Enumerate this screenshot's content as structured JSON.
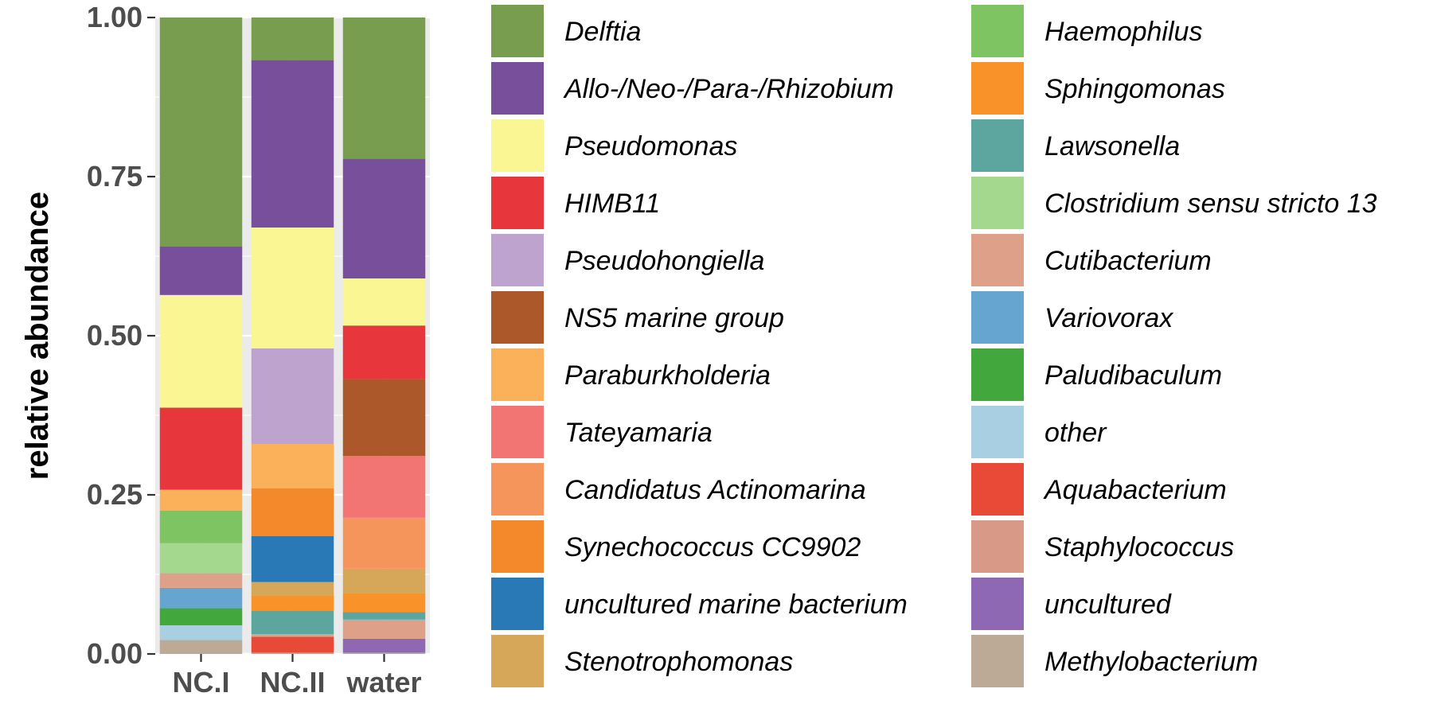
{
  "chart_data": {
    "type": "bar",
    "stacked": true,
    "ylabel": "relative abundance",
    "xlabel": "",
    "ylim": [
      0,
      1
    ],
    "yticks": [
      "0.00",
      "0.25",
      "0.50",
      "0.75",
      "1.00"
    ],
    "categories": [
      "NC.I",
      "NC.II",
      "water"
    ],
    "legend_position": "right",
    "legend_columns": 2,
    "series": [
      {
        "name": "Delftia",
        "color": "#789D4F",
        "values": [
          0.36,
          0.067,
          0.222
        ]
      },
      {
        "name": "Allo-/Neo-/Para-/Rhizobium",
        "color": "#774F9A",
        "values": [
          0.076,
          0.263,
          0.188
        ]
      },
      {
        "name": "Pseudomonas",
        "color": "#F9F693",
        "values": [
          0.177,
          0.19,
          0.074
        ]
      },
      {
        "name": "HIMB11",
        "color": "#E8373C",
        "values": [
          0.129,
          0.0,
          0.084
        ]
      },
      {
        "name": "Pseudohongiella",
        "color": "#BDA3CD",
        "values": [
          0.0,
          0.15,
          0.0
        ]
      },
      {
        "name": "NS5 marine group",
        "color": "#AD582B",
        "values": [
          0.0,
          0.0,
          0.121
        ]
      },
      {
        "name": "Paraburkholderia",
        "color": "#FBB05A",
        "values": [
          0.033,
          0.07,
          0.0
        ]
      },
      {
        "name": "Tateyamaria",
        "color": "#F27574",
        "values": [
          0.0,
          0.0,
          0.097
        ]
      },
      {
        "name": "Candidatus Actinomarina",
        "color": "#F5955C",
        "values": [
          0.0,
          0.0,
          0.08
        ]
      },
      {
        "name": "Synechococcus CC9902",
        "color": "#F4892B",
        "values": [
          0.0,
          0.075,
          0.0
        ]
      },
      {
        "name": "uncultured marine bacterium",
        "color": "#2879B6",
        "values": [
          0.0,
          0.072,
          0.0
        ]
      },
      {
        "name": "Stenotrophomonas",
        "color": "#D6A759",
        "values": [
          0.0,
          0.021,
          0.038
        ]
      },
      {
        "name": "Haemophilus",
        "color": "#7FC462",
        "values": [
          0.051,
          0.0,
          0.0
        ]
      },
      {
        "name": "Sphingomonas",
        "color": "#F99228",
        "values": [
          0.0,
          0.024,
          0.03
        ]
      },
      {
        "name": "Lawsonella",
        "color": "#5DA6A0",
        "values": [
          0.0,
          0.037,
          0.012
        ]
      },
      {
        "name": "Clostridium sensu stricto 13",
        "color": "#A5D88F",
        "values": [
          0.047,
          0.0,
          0.0
        ]
      },
      {
        "name": "Cutibacterium",
        "color": "#DFA08A",
        "values": [
          0.023,
          0.004,
          0.03
        ]
      },
      {
        "name": "Variovorax",
        "color": "#65A5D0",
        "values": [
          0.032,
          0.0,
          0.0
        ]
      },
      {
        "name": "Paludibaculum",
        "color": "#42A83D",
        "values": [
          0.027,
          0.0,
          0.0
        ]
      },
      {
        "name": "other",
        "color": "#A8CFE2",
        "values": [
          0.023,
          0.0,
          0.0
        ]
      },
      {
        "name": "Aquabacterium",
        "color": "#E94A37",
        "values": [
          0.0,
          0.025,
          0.0
        ]
      },
      {
        "name": "Staphylococcus",
        "color": "#D89A86",
        "values": [
          0.0,
          0.002,
          0.0
        ]
      },
      {
        "name": "uncultured",
        "color": "#8F68B4",
        "values": [
          0.0,
          0.0,
          0.022
        ]
      },
      {
        "name": "Methylobacterium",
        "color": "#BCAA96",
        "values": [
          0.022,
          0.0,
          0.002
        ]
      }
    ]
  }
}
